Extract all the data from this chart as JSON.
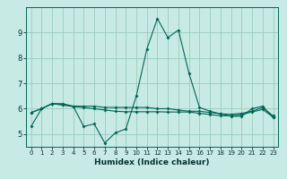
{
  "xlabel": "Humidex (Indice chaleur)",
  "background_color": "#c8eae4",
  "grid_color": "#99ccbb",
  "line_color": "#006655",
  "xlim": [
    -0.5,
    23.5
  ],
  "ylim": [
    4.5,
    10.0
  ],
  "yticks": [
    5,
    6,
    7,
    8,
    9
  ],
  "xticks": [
    0,
    1,
    2,
    3,
    4,
    5,
    6,
    7,
    8,
    9,
    10,
    11,
    12,
    13,
    14,
    15,
    16,
    17,
    18,
    19,
    20,
    21,
    22,
    23
  ],
  "line1": [
    5.3,
    6.0,
    6.2,
    6.2,
    6.1,
    5.3,
    5.4,
    4.65,
    5.05,
    5.2,
    6.5,
    8.35,
    9.55,
    8.8,
    9.1,
    7.4,
    6.05,
    5.9,
    5.8,
    5.7,
    5.7,
    6.0,
    6.1,
    5.65
  ],
  "line2": [
    5.85,
    6.0,
    6.2,
    6.15,
    6.1,
    6.1,
    6.1,
    6.05,
    6.05,
    6.05,
    6.05,
    6.05,
    6.0,
    6.0,
    5.95,
    5.9,
    5.9,
    5.85,
    5.8,
    5.78,
    5.82,
    5.9,
    6.05,
    5.72
  ],
  "line3": [
    5.85,
    6.0,
    6.2,
    6.15,
    6.08,
    6.05,
    6.0,
    5.95,
    5.9,
    5.88,
    5.88,
    5.88,
    5.88,
    5.87,
    5.87,
    5.87,
    5.82,
    5.77,
    5.72,
    5.72,
    5.77,
    5.87,
    5.97,
    5.67
  ]
}
